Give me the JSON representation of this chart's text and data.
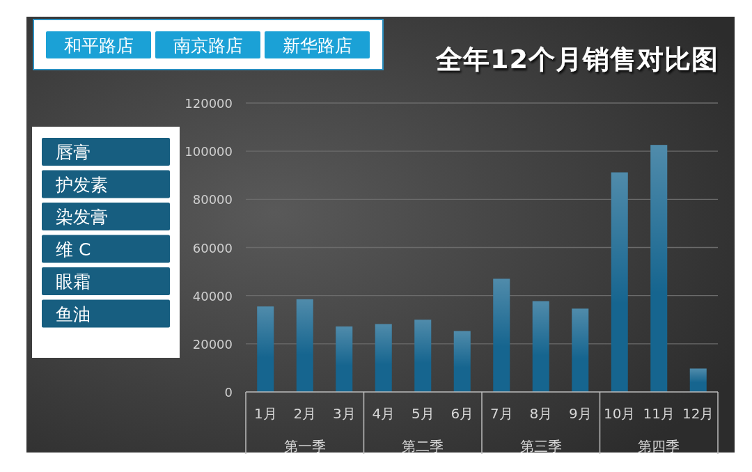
{
  "chart_data": [
    {
      "type": "bar",
      "title": "全年12个月销售对比图",
      "categories": [
        "1月",
        "2月",
        "3月",
        "4月",
        "5月",
        "6月",
        "7月",
        "8月",
        "9月",
        "10月",
        "11月",
        "12月"
      ],
      "values": [
        35500,
        38500,
        27200,
        28200,
        30000,
        25300,
        47000,
        37700,
        34600,
        91200,
        102600,
        9700
      ],
      "color": "#16658f",
      "ylim": [
        0,
        120000
      ],
      "yticks": [
        0,
        20000,
        40000,
        60000,
        80000,
        100000,
        120000
      ],
      "grid": "y",
      "annotations": [
        "第一季",
        "第二季",
        "第三季",
        "第四季"
      ]
    },
    {
      "type": "other",
      "annotations": [
        "和平路店",
        "南京路店",
        "新华路店"
      ]
    },
    {
      "type": "other",
      "annotations": [
        "唇膏",
        "护发素",
        "染发膏",
        "维 C",
        "眼霜",
        "鱼油"
      ]
    }
  ]
}
